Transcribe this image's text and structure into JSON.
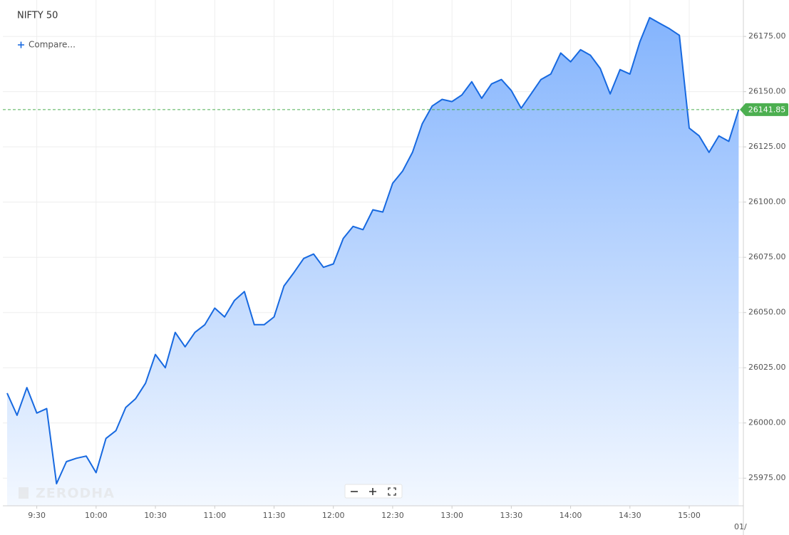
{
  "chart_data": {
    "type": "area",
    "title": "NIFTY 50",
    "compare": "Compare...",
    "watermark": "ZERODHA",
    "date_label": "01/",
    "color": "#1769e0",
    "grid": true,
    "x": [
      "9:15",
      "9:20",
      "9:25",
      "9:30",
      "9:35",
      "9:40",
      "9:45",
      "9:50",
      "9:55",
      "10:00",
      "10:05",
      "10:10",
      "10:15",
      "10:20",
      "10:25",
      "10:30",
      "10:35",
      "10:40",
      "10:45",
      "10:50",
      "10:55",
      "11:00",
      "11:05",
      "11:10",
      "11:15",
      "11:20",
      "11:25",
      "11:30",
      "11:35",
      "11:40",
      "11:45",
      "11:50",
      "11:55",
      "12:00",
      "12:05",
      "12:10",
      "12:15",
      "12:20",
      "12:25",
      "12:30",
      "12:35",
      "12:40",
      "12:45",
      "12:50",
      "12:55",
      "13:00",
      "13:05",
      "13:10",
      "13:15",
      "13:20",
      "13:25",
      "13:30",
      "13:35",
      "13:40",
      "13:45",
      "13:50",
      "13:55",
      "14:00",
      "14:05",
      "14:10",
      "14:15",
      "14:20",
      "14:25",
      "14:30",
      "14:35",
      "14:40",
      "14:45",
      "14:50",
      "14:55",
      "15:00",
      "15:05",
      "15:10",
      "15:15",
      "15:20",
      "15:25"
    ],
    "values": [
      26013.5,
      26003.5,
      26016,
      26004.5,
      26006.5,
      25972.5,
      25982.5,
      25984,
      25985,
      25977.5,
      25993,
      25996.5,
      26007,
      26011,
      26018,
      26031,
      26025,
      26041,
      26034.5,
      26041,
      26044.5,
      26052,
      26048,
      26055.5,
      26059.5,
      26044.5,
      26044.5,
      26048,
      26062,
      26068,
      26074.5,
      26076.5,
      26070.5,
      26072,
      26083.5,
      26089,
      26087.5,
      26096.5,
      26095.5,
      26108.5,
      26114,
      26122.5,
      26135.5,
      26143.5,
      26146.5,
      26145.5,
      26148.5,
      26154.5,
      26147,
      26153.5,
      26155.5,
      26150.5,
      26142.5,
      26149,
      26155.5,
      26158,
      26167.5,
      26163.5,
      26169,
      26166.5,
      26160.5,
      26149,
      26160,
      26158,
      26172.5,
      26183.5,
      26181,
      26178.5,
      26175.5,
      26133.5,
      26130,
      26122.5,
      26130,
      26127.5,
      26141.85
    ],
    "xticks": [
      "9:30",
      "10:00",
      "10:30",
      "11:00",
      "11:30",
      "12:00",
      "12:30",
      "13:00",
      "13:30",
      "14:00",
      "14:30",
      "15:00"
    ],
    "ylim": [
      25962.5,
      26191.5
    ],
    "yticks": [
      {
        "value": 25975,
        "label": "25975.00"
      },
      {
        "value": 26000,
        "label": "26000.00"
      },
      {
        "value": 26025,
        "label": "26025.00"
      },
      {
        "value": 26050,
        "label": "26050.00"
      },
      {
        "value": 26075,
        "label": "26075.00"
      },
      {
        "value": 26100,
        "label": "26100.00"
      },
      {
        "value": 26125,
        "label": "26125.00"
      },
      {
        "value": 26150,
        "label": "26150.00"
      },
      {
        "value": 26175,
        "label": "26175.00"
      }
    ]
  }
}
